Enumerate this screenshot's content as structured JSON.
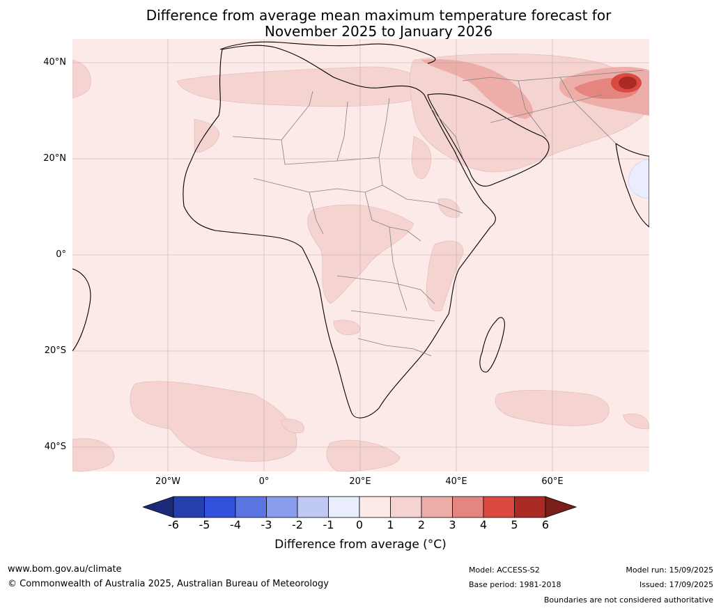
{
  "title": {
    "line1": "Difference from average mean maximum temperature forecast for",
    "line2": "November 2025 to January 2026"
  },
  "lat_labels": [
    "40°N",
    "20°N",
    "0°",
    "20°S",
    "40°S"
  ],
  "lon_labels": [
    "20°W",
    "0°",
    "20°E",
    "40°E",
    "60°E"
  ],
  "colorbar": {
    "label": "Difference from average (°C)",
    "ticks": [
      "-6",
      "-5",
      "-4",
      "-3",
      "-2",
      "-1",
      "0",
      "1",
      "2",
      "3",
      "4",
      "5",
      "6"
    ],
    "colors": [
      "#1c2a7a",
      "#2540ad",
      "#3350dd",
      "#5b76e3",
      "#8a9cec",
      "#c0c9f4",
      "#eaedfb",
      "#fbeae7",
      "#f4d3d0",
      "#edaeaa",
      "#e58580",
      "#db4a40",
      "#ab2a24",
      "#7a1e1a"
    ]
  },
  "footer": {
    "website": "www.bom.gov.au/climate",
    "copyright": "© Commonwealth of Australia 2025, Australian Bureau of Meteorology",
    "model": "Model: ACCESS-S2",
    "base_period": "Base period: 1981-2018",
    "model_run": "Model run: 15/09/2025",
    "issued": "Issued: 17/09/2025",
    "disclaimer": "Boundaries are not considered authoritative"
  },
  "map": {
    "background_color": "#fbeae7",
    "anomaly_fill_color": "#f4d3d0",
    "hotspot_color": "#e58580",
    "coldspot_color": "#eaedfb"
  }
}
